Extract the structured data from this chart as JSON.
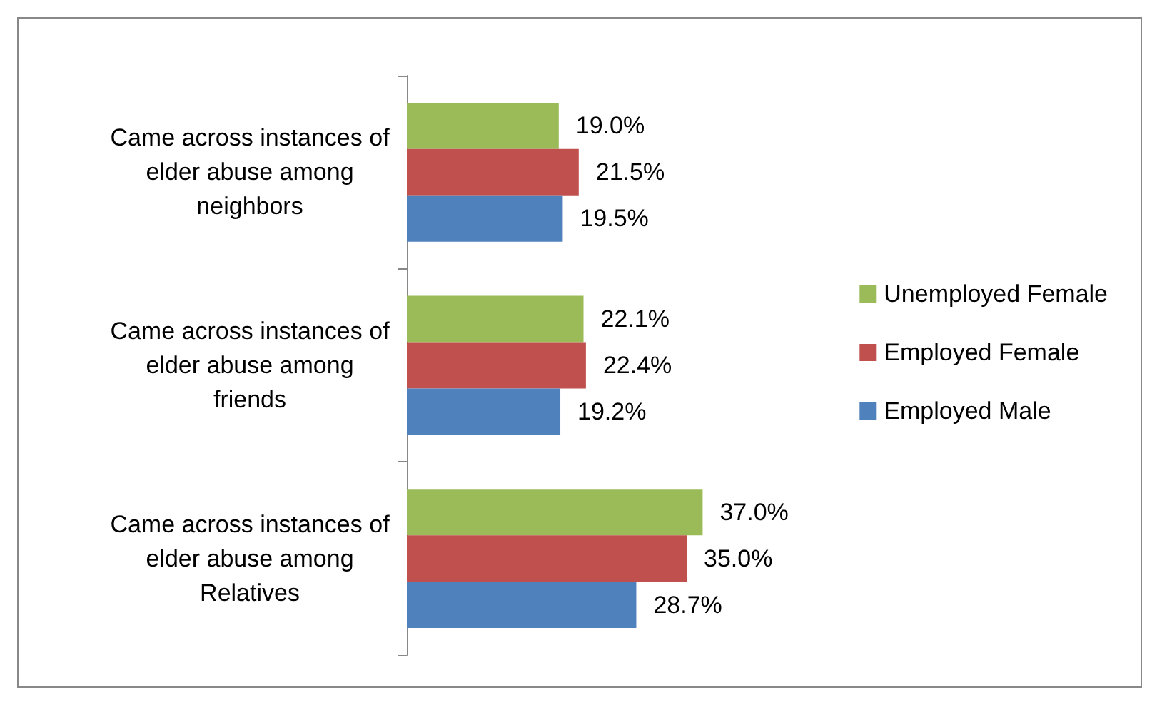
{
  "chart_data": {
    "type": "bar",
    "orientation": "horizontal",
    "categories": [
      "Came across instances of elder abuse among neighbors",
      "Came across instances of elder abuse among friends",
      "Came across instances of elder abuse among Relatives"
    ],
    "series": [
      {
        "name": "Unemployed Female",
        "color": "#9bbb59",
        "values": [
          19.0,
          22.1,
          37.0
        ],
        "value_labels": [
          "19.0%",
          "22.1%",
          "37.0%"
        ]
      },
      {
        "name": "Employed Female",
        "color": "#c0504d",
        "values": [
          21.5,
          22.4,
          35.0
        ],
        "value_labels": [
          "21.5%",
          "22.4%",
          "35.0%"
        ]
      },
      {
        "name": "Employed Male",
        "color": "#4f81bd",
        "values": [
          19.5,
          19.2,
          28.7
        ],
        "value_labels": [
          "19.5%",
          "19.2%",
          "28.7%"
        ]
      }
    ],
    "legend": "right",
    "grid": false
  }
}
